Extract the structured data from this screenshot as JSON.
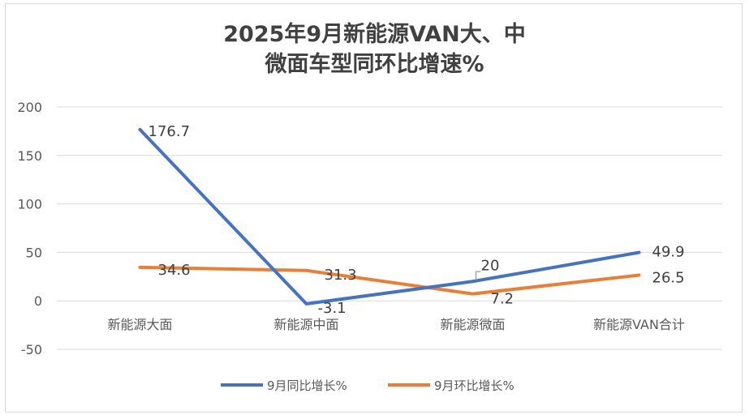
{
  "chart_data": {
    "type": "line",
    "title_line1": "2025年9月新能源VAN大、中",
    "title_line2": "微面车型同环比增速%",
    "categories": [
      "新能源大面",
      "新能源中面",
      "新能源微面",
      "新能源VAN合计"
    ],
    "series": [
      {
        "name": "9月同比增长%",
        "values": [
          176.7,
          -3.1,
          20,
          49.9
        ],
        "labels": [
          "176.7",
          "-3.1",
          "20",
          "49.9"
        ],
        "color": "#4472c4"
      },
      {
        "name": "9月环比增长%",
        "values": [
          34.6,
          31.3,
          7.2,
          26.5
        ],
        "labels": [
          "34.6",
          "31.3",
          "7.2",
          "26.5"
        ],
        "color": "#ed7d31"
      }
    ],
    "yticks": [
      200,
      150,
      100,
      50,
      0,
      -50
    ],
    "ylim": [
      -50,
      200
    ],
    "grid": true,
    "legend_position": "bottom"
  }
}
